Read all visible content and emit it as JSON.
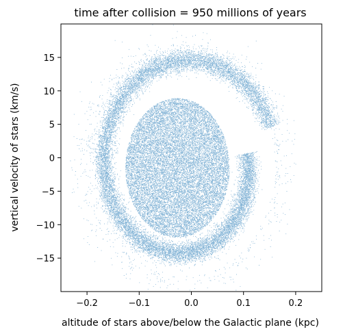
{
  "chart_data": {
    "type": "scatter",
    "title": "time after collision = 950 millions of years",
    "xlabel": "altitude of stars above/below the Galactic plane (kpc)",
    "ylabel": "vertical velocity of stars (km/s)",
    "xlim": [
      -0.25,
      0.25
    ],
    "ylim": [
      -20,
      20
    ],
    "xticks": [
      -0.2,
      -0.1,
      0.0,
      0.1,
      0.2
    ],
    "xtick_labels": [
      "−0.2",
      "−0.1",
      "0.0",
      "0.1",
      "0.2"
    ],
    "yticks": [
      15,
      10,
      5,
      0,
      -5,
      -10,
      -15
    ],
    "ytick_labels": [
      "15",
      "10",
      "5",
      "0",
      "−5",
      "−10",
      "−15"
    ],
    "grid": false,
    "legend": "none",
    "point_color": "#1f77b4",
    "series": [
      {
        "structure": "phase-space spiral",
        "inner_core": {
          "x_range": [
            -0.12,
            0.06
          ],
          "y_range": [
            -12,
            8.5
          ]
        },
        "outer_arm": {
          "x_range": [
            -0.2,
            0.16
          ],
          "y_range": [
            -17,
            15
          ]
        }
      }
    ]
  }
}
